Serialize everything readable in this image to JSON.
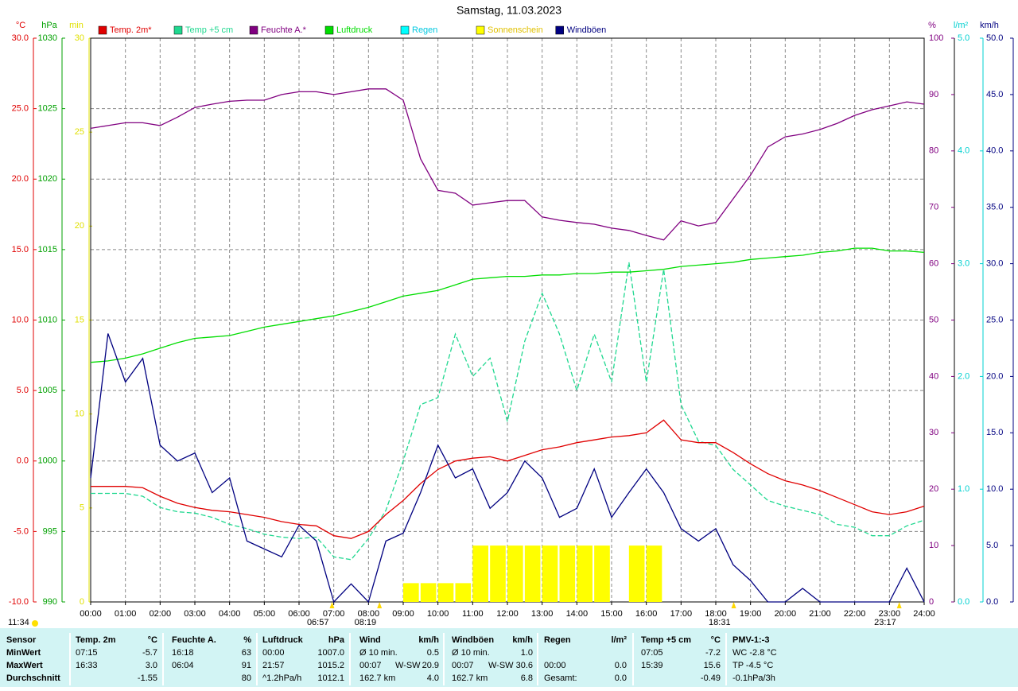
{
  "chart_data": {
    "type": "line",
    "title": "Samstag, 11.03.2023",
    "x": [
      0,
      0.5,
      1,
      1.5,
      2,
      2.5,
      3,
      3.5,
      4,
      4.5,
      5,
      5.5,
      6,
      6.5,
      7,
      7.5,
      8,
      8.5,
      9,
      9.5,
      10,
      10.5,
      11,
      11.5,
      12,
      12.5,
      13,
      13.5,
      14,
      14.5,
      15,
      15.5,
      16,
      16.5,
      17,
      17.5,
      18,
      18.5,
      19,
      19.5,
      20,
      20.5,
      21,
      21.5,
      22,
      22.5,
      23,
      23.5,
      24
    ],
    "xlim": [
      0,
      24
    ],
    "xticks": [
      {
        "value": 0,
        "label": "00:00"
      },
      {
        "value": 1,
        "label": "01:00"
      },
      {
        "value": 2,
        "label": "02:00"
      },
      {
        "value": 3,
        "label": "03:00"
      },
      {
        "value": 4,
        "label": "04:00"
      },
      {
        "value": 5,
        "label": "05:00"
      },
      {
        "value": 6,
        "label": "06:00"
      },
      {
        "value": 7,
        "label": "07:00"
      },
      {
        "value": 8,
        "label": "08:00"
      },
      {
        "value": 9,
        "label": "09:00"
      },
      {
        "value": 10,
        "label": "10:00"
      },
      {
        "value": 11,
        "label": "11:00"
      },
      {
        "value": 12,
        "label": "12:00"
      },
      {
        "value": 13,
        "label": "13:00"
      },
      {
        "value": 14,
        "label": "14:00"
      },
      {
        "value": 15,
        "label": "15:00"
      },
      {
        "value": 16,
        "label": "16:00"
      },
      {
        "value": 17,
        "label": "17:00"
      },
      {
        "value": 18,
        "label": "18:00"
      },
      {
        "value": 19,
        "label": "19:00"
      },
      {
        "value": 20,
        "label": "20:00"
      },
      {
        "value": 21,
        "label": "21:00"
      },
      {
        "value": 22,
        "label": "22:00"
      },
      {
        "value": 23,
        "label": "23:00"
      },
      {
        "value": 24,
        "label": "24:00"
      }
    ],
    "grid": true,
    "axes": [
      {
        "label": "°C",
        "color": "#e00000",
        "lim": [
          -10,
          30
        ],
        "ticks": [
          {
            "value": 30,
            "label": "30.0"
          },
          {
            "value": 25,
            "label": "25.0"
          },
          {
            "value": 20,
            "label": "20.0"
          },
          {
            "value": 15,
            "label": "15.0"
          },
          {
            "value": 10,
            "label": "10.0"
          },
          {
            "value": 5,
            "label": "5.0"
          },
          {
            "value": 0,
            "label": "0.0"
          },
          {
            "value": -5,
            "label": "-5.0"
          },
          {
            "value": -10,
            "label": "-10.0"
          }
        ]
      },
      {
        "label": "hPa",
        "color": "#00a000",
        "lim": [
          990,
          1030
        ],
        "ticks": [
          1030,
          1025,
          1020,
          1015,
          1010,
          1005,
          1000,
          995,
          990
        ]
      },
      {
        "label": "min",
        "color": "#e0e000",
        "lim": [
          0,
          30
        ],
        "ticks": [
          30,
          25,
          20,
          15,
          10,
          5,
          0
        ]
      },
      {
        "label": "%",
        "color": "#800080",
        "lim": [
          0,
          100
        ],
        "ticks": [
          100,
          90,
          80,
          70,
          60,
          50,
          40,
          30,
          20,
          10,
          0
        ]
      },
      {
        "label": "l/m²",
        "color": "#00d0d0",
        "lim": [
          0,
          5
        ],
        "ticks": [
          {
            "value": 5,
            "label": "5.0"
          },
          {
            "value": 4,
            "label": "4.0"
          },
          {
            "value": 3,
            "label": "3.0"
          },
          {
            "value": 2,
            "label": "2.0"
          },
          {
            "value": 1,
            "label": "1.0"
          },
          {
            "value": 0,
            "label": "0.0"
          }
        ]
      },
      {
        "label": "km/h",
        "color": "#000080",
        "lim": [
          0,
          50
        ],
        "ticks": [
          {
            "value": 50,
            "label": "50.0"
          },
          {
            "value": 45,
            "label": "45.0"
          },
          {
            "value": 40,
            "label": "40.0"
          },
          {
            "value": 35,
            "label": "35.0"
          },
          {
            "value": 30,
            "label": "30.0"
          },
          {
            "value": 25,
            "label": "25.0"
          },
          {
            "value": 20,
            "label": "20.0"
          },
          {
            "value": 15,
            "label": "15.0"
          },
          {
            "value": 10,
            "label": "10.0"
          },
          {
            "value": 5,
            "label": "5.0"
          },
          {
            "value": 0,
            "label": "0.0"
          }
        ]
      }
    ],
    "series": [
      {
        "name": "Temp. 2m*",
        "color": "#e00000",
        "kind": "line",
        "axis": 0,
        "values": [
          -1.8,
          -1.8,
          -1.8,
          -1.9,
          -2.5,
          -3.0,
          -3.3,
          -3.5,
          -3.6,
          -3.8,
          -4.0,
          -4.3,
          -4.5,
          -4.6,
          -5.3,
          -5.5,
          -5.0,
          -3.8,
          -2.8,
          -1.6,
          -0.6,
          0.0,
          0.2,
          0.3,
          0.0,
          0.4,
          0.8,
          1.0,
          1.3,
          1.5,
          1.7,
          1.8,
          2.0,
          2.9,
          1.5,
          1.3,
          1.3,
          0.6,
          -0.2,
          -0.9,
          -1.4,
          -1.7,
          -2.1,
          -2.6,
          -3.1,
          -3.6,
          -3.8,
          -3.6,
          -3.2
        ]
      },
      {
        "name": "Temp +5 cm",
        "color": "#20d890",
        "kind": "dashed",
        "axis": 0,
        "values": [
          -2.3,
          -2.3,
          -2.3,
          -2.5,
          -3.3,
          -3.6,
          -3.7,
          -4.0,
          -4.5,
          -4.8,
          -5.2,
          -5.4,
          -5.5,
          -5.4,
          -6.8,
          -7.0,
          -5.5,
          -3.5,
          0.0,
          4.0,
          4.5,
          9.0,
          6.0,
          7.3,
          2.8,
          8.5,
          11.9,
          9.0,
          5.0,
          9.0,
          5.6,
          14.1,
          5.6,
          13.6,
          4.0,
          1.4,
          1.1,
          -0.6,
          -1.7,
          -2.8,
          -3.2,
          -3.5,
          -3.8,
          -4.5,
          -4.7,
          -5.3,
          -5.3,
          -4.6,
          -4.2
        ]
      },
      {
        "name": "Feuchte A.*",
        "color": "#800080",
        "kind": "line",
        "axis": 3,
        "values": [
          84,
          84.5,
          85,
          85,
          84.5,
          86,
          87.7,
          88.3,
          88.8,
          89,
          89,
          90,
          90.5,
          90.5,
          90,
          90.5,
          91,
          91,
          89,
          78.6,
          73,
          72.5,
          70.4,
          70.8,
          71.2,
          71.2,
          68.3,
          67.7,
          67.3,
          67,
          66.3,
          65.9,
          65,
          64.2,
          67.6,
          66.7,
          67.3,
          71.5,
          75.7,
          80.7,
          82.5,
          83,
          83.8,
          84.9,
          86.3,
          87.3,
          88,
          88.7,
          88.3
        ]
      },
      {
        "name": "Luftdruck",
        "color": "#00dd00",
        "kind": "line",
        "axis": 1,
        "values": [
          1007.0,
          1007.1,
          1007.3,
          1007.6,
          1008.0,
          1008.4,
          1008.7,
          1008.8,
          1008.9,
          1009.2,
          1009.5,
          1009.7,
          1009.9,
          1010.1,
          1010.3,
          1010.6,
          1010.9,
          1011.3,
          1011.7,
          1011.9,
          1012.1,
          1012.5,
          1012.9,
          1013.0,
          1013.1,
          1013.1,
          1013.2,
          1013.2,
          1013.3,
          1013.3,
          1013.4,
          1013.4,
          1013.5,
          1013.6,
          1013.8,
          1013.9,
          1014.0,
          1014.1,
          1014.3,
          1014.4,
          1014.5,
          1014.6,
          1014.8,
          1014.9,
          1015.1,
          1015.1,
          1014.9,
          1014.9,
          1014.8
        ]
      },
      {
        "name": "Regen",
        "color": "#00ffff",
        "kind": "bar",
        "axis": 4,
        "values": [
          0,
          0,
          0,
          0,
          0,
          0,
          0,
          0,
          0,
          0,
          0,
          0,
          0,
          0,
          0,
          0,
          0,
          0,
          0,
          0,
          0,
          0,
          0,
          0,
          0,
          0,
          0,
          0,
          0,
          0,
          0,
          0,
          0,
          0,
          0,
          0,
          0,
          0,
          0,
          0,
          0,
          0,
          0,
          0,
          0,
          0,
          0,
          0,
          0
        ]
      },
      {
        "name": "Sonnenschein",
        "color": "#ffff00",
        "kind": "bar",
        "axis": 2,
        "values": [
          0,
          0,
          0,
          0,
          0,
          0,
          0,
          0,
          0,
          0,
          0,
          0,
          0,
          0,
          0,
          0,
          0,
          0,
          1,
          1,
          1,
          1,
          3,
          3,
          3,
          3,
          3,
          3,
          3,
          3,
          0,
          3,
          3,
          0,
          0,
          0,
          0,
          0,
          0,
          0,
          0,
          0,
          0,
          0,
          0,
          0,
          0,
          0,
          0
        ]
      },
      {
        "name": "Windböen",
        "color": "#000080",
        "kind": "line",
        "axis": 5,
        "values": [
          11,
          23.8,
          19.5,
          21.6,
          13.9,
          12.5,
          13.2,
          9.7,
          11,
          5.4,
          4.7,
          4,
          6.8,
          5.4,
          0,
          1.6,
          0,
          5.4,
          6.1,
          9.7,
          13.9,
          11,
          11.8,
          8.3,
          9.7,
          12.5,
          11,
          7.5,
          8.3,
          11.8,
          7.5,
          9.7,
          11.8,
          9.7,
          6.5,
          5.4,
          6.5,
          3.3,
          1.9,
          0,
          0,
          1.2,
          0,
          0,
          0,
          0,
          0,
          3,
          0
        ]
      }
    ],
    "daylength": "11:34",
    "sun_events": [
      {
        "label": "06:57",
        "x": 6.95
      },
      {
        "label": "08:19",
        "x": 8.3167
      },
      {
        "label": "18:31",
        "x": 18.517
      },
      {
        "label": "23:17",
        "x": 23.283
      }
    ]
  },
  "table": {
    "rows": [
      [
        "Sensor",
        "Temp. 2m",
        "°C",
        "Feuchte A.",
        "%",
        "Luftdruck",
        "hPa",
        "Wind",
        null,
        "km/h",
        "Windböen",
        null,
        "km/h",
        "Regen",
        "l/m²",
        "Temp +5 cm",
        "°C",
        "PMV-1:-3"
      ],
      [
        "MinWert",
        "07:15",
        "-5.7",
        "16:18",
        "63",
        "00:00",
        "1007.0",
        "Ø 10 min.",
        null,
        "0.5",
        "Ø 10 min.",
        null,
        "1.0",
        null,
        null,
        "07:05",
        "-7.2",
        "WC -2.8 °C"
      ],
      [
        "MaxWert",
        "16:33",
        "3.0",
        "06:04",
        "91",
        "21:57",
        "1015.2",
        "00:07",
        "W-SW",
        "20.9",
        "00:07",
        "W-SW",
        "30.6",
        "00:00",
        "0.0",
        "15:39",
        "15.6",
        "TP -4.5 °C"
      ],
      [
        "Durchschnitt",
        null,
        "-1.55",
        null,
        "80",
        "^1.2hPa/h",
        "1012.1",
        "162.7 km",
        null,
        "4.0",
        "162.7 km",
        null,
        "6.8",
        "Gesamt:",
        "0.0",
        null,
        "-0.49",
        "-0.1hPa/3h"
      ]
    ]
  }
}
